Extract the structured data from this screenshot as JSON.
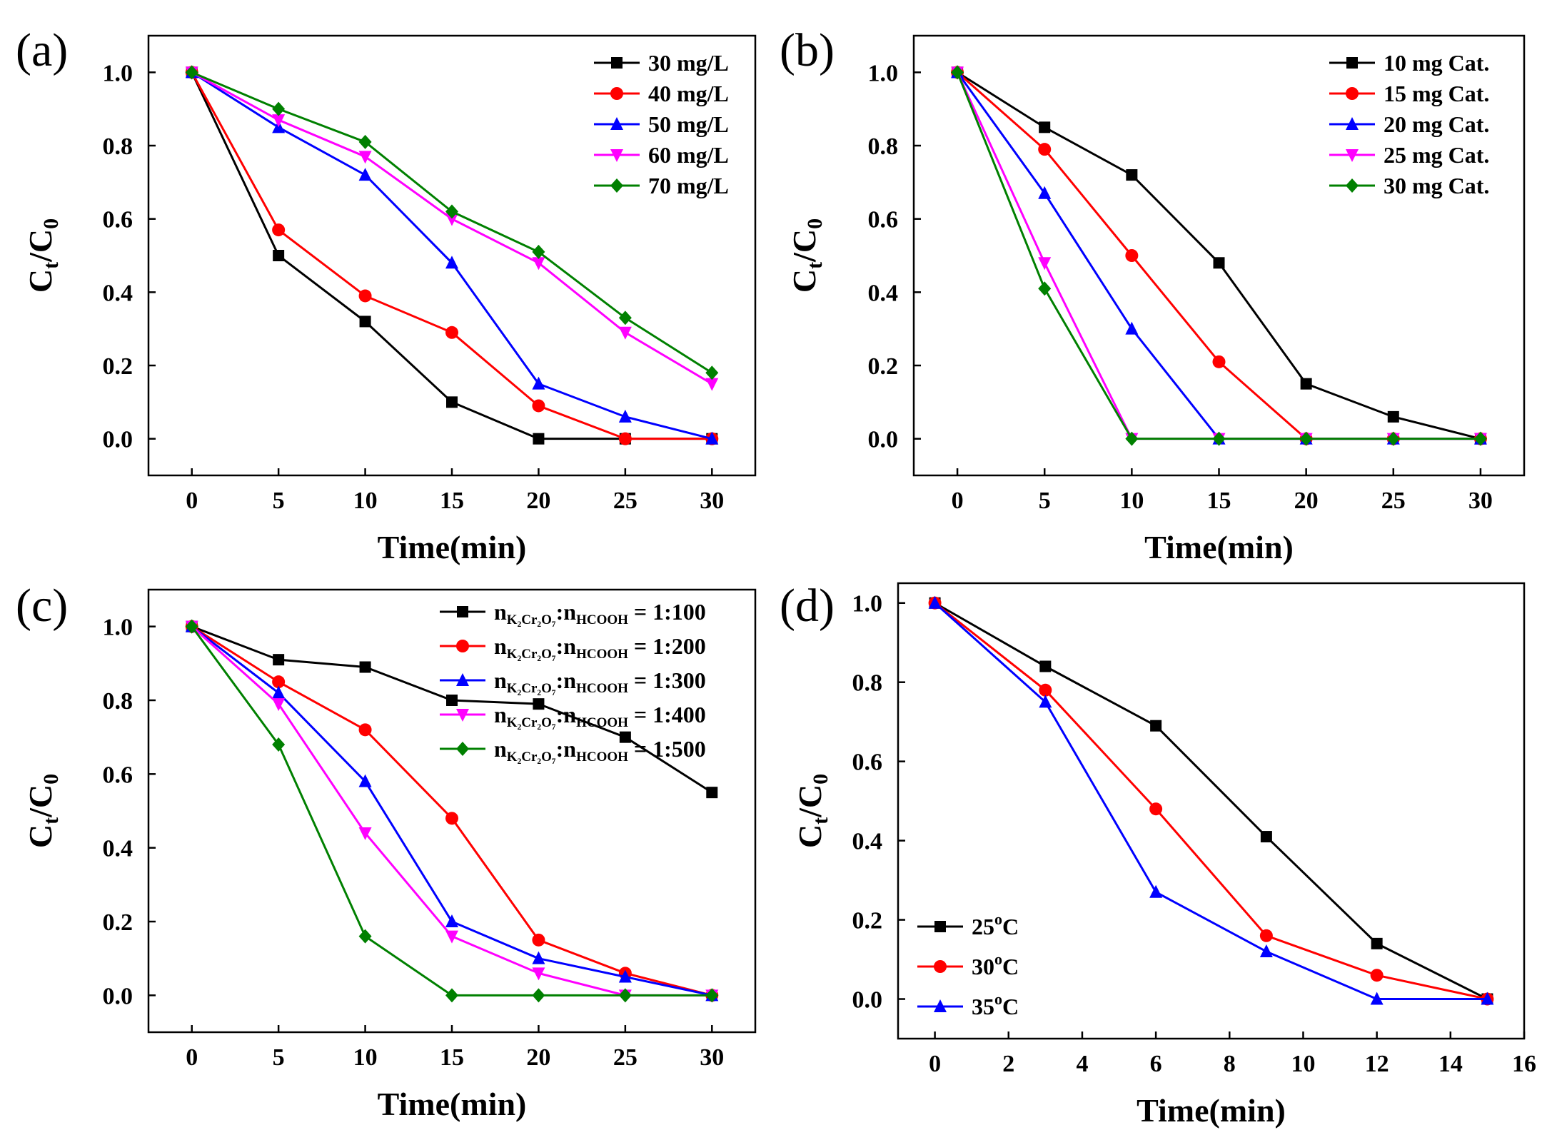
{
  "chart_data": [
    {
      "type": "line",
      "panel_label": "(a)",
      "xlabel": "Time(min)",
      "ylabel": {
        "main": "C",
        "sub1": "t",
        "slash": "/C",
        "sub2": "0"
      },
      "xlim": [
        -2.5,
        32.5
      ],
      "ylim": [
        -0.1,
        1.1
      ],
      "xticks": [
        0,
        5,
        10,
        15,
        20,
        25,
        30
      ],
      "yticks": [
        0.0,
        0.2,
        0.4,
        0.6,
        0.8,
        1.0
      ],
      "ytick_labels": [
        "0.0",
        "0.2",
        "0.4",
        "0.6",
        "0.8",
        "1.0"
      ],
      "legend_position": "top-right",
      "x": [
        0,
        5,
        10,
        15,
        20,
        25,
        30
      ],
      "series": [
        {
          "name": "30 mg/L",
          "color": "#000000",
          "marker": "square",
          "values": [
            1.0,
            0.5,
            0.32,
            0.1,
            0.0,
            0.0,
            0.0
          ]
        },
        {
          "name": "40 mg/L",
          "color": "#ff0000",
          "marker": "circle",
          "values": [
            1.0,
            0.57,
            0.39,
            0.29,
            0.09,
            0.0,
            0.0
          ]
        },
        {
          "name": "50 mg/L",
          "color": "#0000ff",
          "marker": "triangle-up",
          "values": [
            1.0,
            0.85,
            0.72,
            0.48,
            0.15,
            0.06,
            0.0
          ]
        },
        {
          "name": "60 mg/L",
          "color": "#ff00ff",
          "marker": "triangle-down",
          "values": [
            1.0,
            0.87,
            0.77,
            0.6,
            0.48,
            0.29,
            0.15
          ]
        },
        {
          "name": "70 mg/L",
          "color": "#008000",
          "marker": "diamond",
          "values": [
            1.0,
            0.9,
            0.81,
            0.62,
            0.51,
            0.33,
            0.18
          ]
        }
      ]
    },
    {
      "type": "line",
      "panel_label": "(b)",
      "xlabel": "Time(min)",
      "ylabel": {
        "main": "C",
        "sub1": "t",
        "slash": "/C",
        "sub2": "0"
      },
      "xlim": [
        -2.5,
        32.5
      ],
      "ylim": [
        -0.1,
        1.1
      ],
      "xticks": [
        0,
        5,
        10,
        15,
        20,
        25,
        30
      ],
      "yticks": [
        0.0,
        0.2,
        0.4,
        0.6,
        0.8,
        1.0
      ],
      "ytick_labels": [
        "0.0",
        "0.2",
        "0.4",
        "0.6",
        "0.8",
        "1.0"
      ],
      "legend_position": "top-right",
      "x": [
        0,
        5,
        10,
        15,
        20,
        25,
        30
      ],
      "series": [
        {
          "name": "10 mg Cat.",
          "color": "#000000",
          "marker": "square",
          "values": [
            1.0,
            0.85,
            0.72,
            0.48,
            0.15,
            0.06,
            0.0
          ]
        },
        {
          "name": "15 mg Cat.",
          "color": "#ff0000",
          "marker": "circle",
          "values": [
            1.0,
            0.79,
            0.5,
            0.21,
            0.0,
            0.0,
            0.0
          ]
        },
        {
          "name": "20 mg Cat.",
          "color": "#0000ff",
          "marker": "triangle-up",
          "values": [
            1.0,
            0.67,
            0.3,
            0.0,
            0.0,
            0.0,
            0.0
          ]
        },
        {
          "name": "25 mg Cat.",
          "color": "#ff00ff",
          "marker": "triangle-down",
          "values": [
            1.0,
            0.48,
            0.0,
            0.0,
            0.0,
            0.0,
            0.0
          ]
        },
        {
          "name": "30 mg Cat.",
          "color": "#008000",
          "marker": "diamond",
          "values": [
            1.0,
            0.41,
            0.0,
            0.0,
            0.0,
            0.0,
            0.0
          ]
        }
      ]
    },
    {
      "type": "line",
      "panel_label": "(c)",
      "xlabel": "Time(min)",
      "ylabel": {
        "main": "C",
        "sub1": "t",
        "slash": "/C",
        "sub2": "0"
      },
      "xlim": [
        -2.5,
        32.5
      ],
      "ylim": [
        -0.1,
        1.1
      ],
      "xticks": [
        0,
        5,
        10,
        15,
        20,
        25,
        30
      ],
      "yticks": [
        0.0,
        0.2,
        0.4,
        0.6,
        0.8,
        1.0
      ],
      "ytick_labels": [
        "0.0",
        "0.2",
        "0.4",
        "0.6",
        "0.8",
        "1.0"
      ],
      "legend_position": "top-right",
      "x": [
        0,
        5,
        10,
        15,
        20,
        25,
        30
      ],
      "series": [
        {
          "name": "nK₂Cr₂O₇:nHCOOH = 1:100",
          "label_n": "n",
          "label_sub1": "K₂Cr₂O₇",
          "label_sep": ":n",
          "label_sub2": "HCOOH",
          "label_ratio": " = 1:100",
          "color": "#000000",
          "marker": "square",
          "values": [
            1.0,
            0.91,
            0.89,
            0.8,
            0.79,
            0.7,
            0.55
          ]
        },
        {
          "name": "nK₂Cr₂O₇:nHCOOH = 1:200",
          "label_n": "n",
          "label_sub1": "K₂Cr₂O₇",
          "label_sep": ":n",
          "label_sub2": "HCOOH",
          "label_ratio": " = 1:200",
          "color": "#ff0000",
          "marker": "circle",
          "values": [
            1.0,
            0.85,
            0.72,
            0.48,
            0.15,
            0.06,
            0.0
          ]
        },
        {
          "name": "nK₂Cr₂O₇:nHCOOH = 1:300",
          "label_n": "n",
          "label_sub1": "K₂Cr₂O₇",
          "label_sep": ":n",
          "label_sub2": "HCOOH",
          "label_ratio": " = 1:300",
          "color": "#0000ff",
          "marker": "triangle-up",
          "values": [
            1.0,
            0.82,
            0.58,
            0.2,
            0.1,
            0.05,
            0.0
          ]
        },
        {
          "name": "nK₂Cr₂O₇:nHCOOH = 1:400",
          "label_n": "n",
          "label_sub1": "K₂Cr₂O₇",
          "label_sep": ":n",
          "label_sub2": "HCOOH",
          "label_ratio": " = 1:400",
          "color": "#ff00ff",
          "marker": "triangle-down",
          "values": [
            1.0,
            0.79,
            0.44,
            0.16,
            0.06,
            0.0,
            0.0
          ]
        },
        {
          "name": "nK₂Cr₂O₇:nHCOOH = 1:500",
          "label_n": "n",
          "label_sub1": "K₂Cr₂O₇",
          "label_sep": ":n",
          "label_sub2": "HCOOH",
          "label_ratio": " = 1:500",
          "color": "#008000",
          "marker": "diamond",
          "values": [
            1.0,
            0.68,
            0.16,
            0.0,
            0.0,
            0.0,
            0.0
          ]
        }
      ]
    },
    {
      "type": "line",
      "panel_label": "(d)",
      "xlabel": "Time(min)",
      "ylabel": {
        "main": "C",
        "sub1": "t",
        "slash": "/C",
        "sub2": "0"
      },
      "xlim": [
        -1.0,
        16.0
      ],
      "ylim": [
        -0.1,
        1.05
      ],
      "xticks": [
        0,
        2,
        4,
        6,
        8,
        10,
        12,
        14,
        16
      ],
      "yticks": [
        0.0,
        0.2,
        0.4,
        0.6,
        0.8,
        1.0
      ],
      "ytick_labels": [
        "0.0",
        "0.2",
        "0.4",
        "0.6",
        "0.8",
        "1.0"
      ],
      "legend_position": "bottom-left",
      "x": [
        0,
        3,
        6,
        9,
        12,
        15
      ],
      "series": [
        {
          "name": "25°C",
          "label_num": "25",
          "label_deg": "o",
          "label_unit": "C",
          "color": "#000000",
          "marker": "square",
          "values": [
            1.0,
            0.84,
            0.69,
            0.41,
            0.14,
            0.0
          ]
        },
        {
          "name": "30°C",
          "label_num": "30",
          "label_deg": "o",
          "label_unit": "C",
          "color": "#ff0000",
          "marker": "circle",
          "values": [
            1.0,
            0.78,
            0.48,
            0.16,
            0.06,
            0.0
          ]
        },
        {
          "name": "35°C",
          "label_num": "35",
          "label_deg": "o",
          "label_unit": "C",
          "color": "#0000ff",
          "marker": "triangle-up",
          "values": [
            1.0,
            0.75,
            0.27,
            0.12,
            0.0,
            0.0
          ]
        }
      ]
    }
  ]
}
